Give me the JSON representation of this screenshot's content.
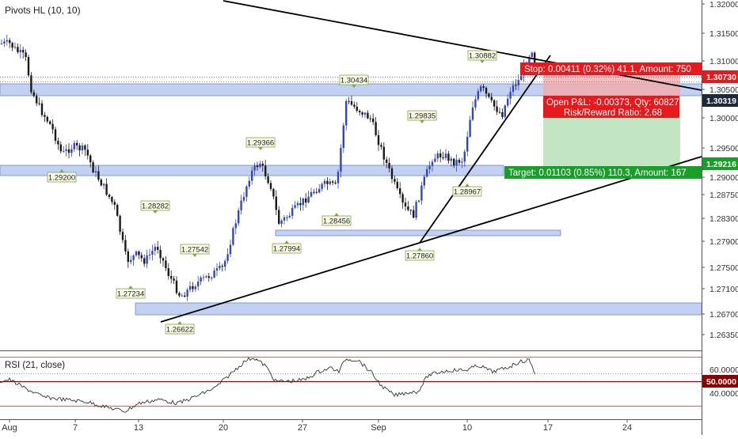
{
  "chart_data": {
    "type": "candlestick",
    "title": "Pivots HL (10, 10)",
    "y_axis_ticks": [
      "1.32000",
      "1.31500",
      "1.31000",
      "1.30500",
      "1.30000",
      "1.29500",
      "1.29000",
      "1.28750",
      "1.28300",
      "1.27900",
      "1.27500",
      "1.27100",
      "1.26700",
      "1.26350"
    ],
    "x_axis_ticks": [
      "Aug",
      "7",
      "13",
      "20",
      "27",
      "Sep",
      "10",
      "17",
      "24"
    ],
    "price_labels": [
      {
        "value": "1.30730",
        "kind": "red"
      },
      {
        "value": "1.30319",
        "kind": "dark"
      },
      {
        "value": "1.29216",
        "kind": "green"
      }
    ],
    "pivot_labels": [
      {
        "text": "1.30882",
        "type": "high"
      },
      {
        "text": "1.30434",
        "type": "high"
      },
      {
        "text": "1.29835",
        "type": "high"
      },
      {
        "text": "1.29366",
        "type": "high"
      },
      {
        "text": "1.29200",
        "type": "low"
      },
      {
        "text": "1.28282",
        "type": "high"
      },
      {
        "text": "1.28456",
        "type": "low"
      },
      {
        "text": "1.28967",
        "type": "low"
      },
      {
        "text": "1.27994",
        "type": "low"
      },
      {
        "text": "1.27860",
        "type": "low"
      },
      {
        "text": "1.27542",
        "type": "high"
      },
      {
        "text": "1.27234",
        "type": "low"
      },
      {
        "text": "1.26622",
        "type": "low"
      }
    ],
    "position": {
      "stop_text": "Stop: 0.00411 (0.32%) 41.1, Amount: 750",
      "open_text_1": "Open P&L: -0.00373, Qty: 60827",
      "open_text_2": "Risk/Reward Ratio: 2.68",
      "target_text": "Target: 0.01103 (0.85%) 110.3, Amount: 167"
    },
    "rsi": {
      "title": "RSI (21, close)",
      "ticks": [
        "60.0000",
        "50.0000",
        "40.0000"
      ],
      "current_label": "50.0000"
    },
    "colors": {
      "up": "#3547b8",
      "down": "#1a1a1a",
      "zone": "#b8caf0",
      "stop": "#f2a9a9",
      "target": "#a6dca6",
      "red_label": "#e8191c",
      "green_label": "#1a9e2a"
    }
  }
}
